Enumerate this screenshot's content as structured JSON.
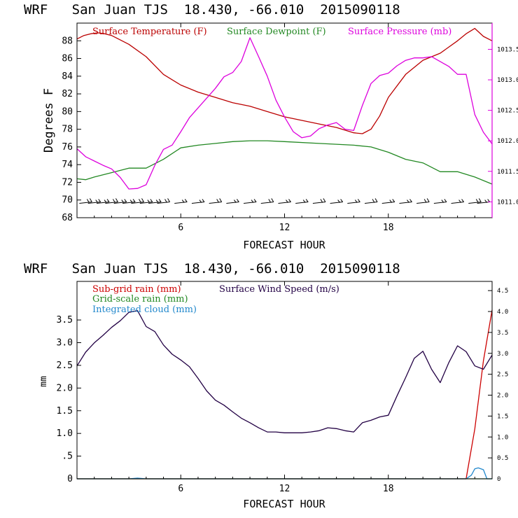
{
  "chart_data": [
    {
      "type": "line",
      "title": "WRF   San Juan TJS  18.430, -66.010  2015090118",
      "xlabel": "FORECAST HOUR",
      "ylabel": "Degrees F",
      "xlim": [
        0,
        24
      ],
      "ylim": [
        68,
        90
      ],
      "xticks": [
        "6",
        "12",
        "18"
      ],
      "yticks": [
        "68",
        "70",
        "72",
        "74",
        "76",
        "78",
        "80",
        "82",
        "84",
        "86",
        "88"
      ],
      "y2lim": [
        1010.74,
        1013.93
      ],
      "y2ticks": [
        "1011.0",
        "1011.5",
        "1012.0",
        "1012.5",
        "1013.0",
        "1013.5"
      ],
      "legend_placement": "top",
      "colors": {
        "temperature": "#bb0000",
        "dewpoint": "#228822",
        "pressure": "#dd00dd",
        "wind": "#000000"
      },
      "series": [
        {
          "name": "Surface Temperature (F)",
          "color": "#bb0000",
          "axis": "left",
          "x": [
            0,
            0.4,
            0.8,
            1.2,
            1.6,
            2,
            3,
            4,
            5,
            6,
            7,
            8,
            9,
            10,
            11,
            12,
            13,
            14,
            15,
            16,
            16.5,
            17,
            17.5,
            18,
            19,
            20,
            21,
            22,
            22.5,
            23,
            23.5,
            24
          ],
          "y": [
            88.2,
            88.6,
            88.8,
            88.9,
            88.8,
            88.6,
            87.6,
            86.2,
            84.2,
            83.0,
            82.2,
            81.6,
            81.0,
            80.6,
            80.0,
            79.4,
            79.0,
            78.6,
            78.2,
            77.6,
            77.5,
            78.0,
            79.5,
            81.6,
            84.2,
            85.8,
            86.6,
            88.0,
            88.8,
            89.4,
            88.5,
            88.0
          ]
        },
        {
          "name": "Surface Dewpoint (F)",
          "color": "#228822",
          "axis": "left",
          "x": [
            0,
            0.5,
            1,
            2,
            3,
            4,
            5,
            6,
            7,
            8,
            9,
            10,
            11,
            12,
            14,
            16,
            17,
            18,
            19,
            20,
            21,
            22,
            23,
            24
          ],
          "y": [
            72.4,
            72.3,
            72.6,
            73.1,
            73.6,
            73.6,
            74.6,
            75.9,
            76.2,
            76.4,
            76.6,
            76.7,
            76.7,
            76.6,
            76.4,
            76.2,
            76.0,
            75.4,
            74.6,
            74.2,
            73.2,
            73.2,
            72.6,
            71.8
          ]
        },
        {
          "name": "Surface Pressure (mb)",
          "color": "#dd00dd",
          "axis": "right",
          "x": [
            0,
            0.5,
            1,
            1.5,
            2,
            2.5,
            3,
            3.5,
            4,
            4.5,
            5,
            5.5,
            6,
            6.5,
            7,
            7.5,
            8,
            8.5,
            9,
            9.5,
            10,
            10.5,
            11,
            11.5,
            12,
            12.5,
            13,
            13.5,
            14,
            14.5,
            15,
            15.5,
            16,
            16.5,
            17,
            17.5,
            18,
            18.5,
            19,
            19.5,
            20,
            20.5,
            21,
            21.5,
            22,
            22.5,
            23,
            23.5,
            24
          ],
          "y": [
            1011.87,
            1011.74,
            1011.67,
            1011.6,
            1011.54,
            1011.4,
            1011.21,
            1011.22,
            1011.28,
            1011.6,
            1011.86,
            1011.93,
            1012.15,
            1012.38,
            1012.54,
            1012.7,
            1012.86,
            1013.05,
            1013.12,
            1013.3,
            1013.69,
            1013.38,
            1013.06,
            1012.67,
            1012.39,
            1012.15,
            1012.05,
            1012.08,
            1012.2,
            1012.26,
            1012.3,
            1012.19,
            1012.17,
            1012.58,
            1012.94,
            1013.07,
            1013.11,
            1013.23,
            1013.32,
            1013.36,
            1013.36,
            1013.38,
            1013.3,
            1013.22,
            1013.09,
            1013.09,
            1012.43,
            1012.14,
            1011.95
          ]
        },
        {
          "name": "Surface Wind",
          "color": "#000000",
          "axis": "none",
          "type": "barbs",
          "x": [
            0.5,
            1,
            1.5,
            2,
            2.5,
            3,
            3.5,
            4,
            4.5,
            5,
            6,
            7,
            8,
            9,
            10,
            11,
            12,
            13,
            14,
            15,
            16,
            17,
            18,
            19,
            20,
            21,
            22,
            23,
            23.5
          ],
          "y": [
            69.7,
            69.7,
            69.7,
            69.7,
            69.7,
            69.7,
            69.7,
            69.7,
            69.7,
            69.7,
            69.7,
            69.7,
            69.7,
            69.7,
            69.7,
            69.7,
            69.7,
            69.7,
            69.7,
            69.7,
            69.7,
            69.7,
            69.7,
            69.7,
            69.7,
            69.7,
            69.7,
            69.7,
            69.7
          ]
        }
      ]
    },
    {
      "type": "line",
      "title": "WRF   San Juan TJS  18.430, -66.010  2015090118",
      "xlabel": "FORECAST HOUR",
      "ylabel": "mm",
      "xlim": [
        0,
        24
      ],
      "ylim": [
        0,
        4.35
      ],
      "xticks": [
        "6",
        "12",
        "18"
      ],
      "yticks": [
        "0",
        ".5",
        "1.0",
        "1.5",
        "2.0",
        "2.5",
        "3.0",
        "3.5"
      ],
      "y2lim": [
        0,
        4.72
      ],
      "y2ticks": [
        "0",
        "0.5",
        "1.0",
        "1.5",
        "2.0",
        "2.5",
        "3.0",
        "3.5",
        "4.0",
        "4.5"
      ],
      "legend_placement": "top-left",
      "colors": {
        "subgrid": "#cc0000",
        "gridscale": "#228822",
        "cloud": "#2288cc",
        "wind": "#220044"
      },
      "series": [
        {
          "name": "Sub-grid rain (mm)",
          "color": "#cc0000",
          "axis": "left",
          "x": [
            0,
            22.5,
            23,
            23.5,
            24
          ],
          "y": [
            0,
            0,
            1.1,
            2.6,
            3.72
          ]
        },
        {
          "name": "Grid-scale rain (mm)",
          "color": "#228822",
          "axis": "left",
          "x": [
            0,
            24
          ],
          "y": [
            0,
            0
          ]
        },
        {
          "name": "Integrated cloud (mm)",
          "color": "#2288cc",
          "axis": "left",
          "x": [
            0,
            3,
            3.5,
            4,
            22.5,
            22.8,
            23,
            23.2,
            23.5,
            23.7,
            24
          ],
          "y": [
            0,
            0,
            0.015,
            0,
            0,
            0.08,
            0.22,
            0.24,
            0.2,
            0,
            0
          ]
        },
        {
          "name": "Surface Wind Speed (m/s)",
          "color": "#220044",
          "axis": "right",
          "x": [
            0,
            0.5,
            1,
            1.5,
            2,
            2.5,
            3,
            3.5,
            4,
            4.5,
            5,
            5.5,
            6,
            6.5,
            7,
            7.5,
            8,
            8.5,
            9,
            9.5,
            10,
            10.5,
            11,
            11.5,
            12,
            12.5,
            13,
            13.5,
            14,
            14.5,
            15,
            15.5,
            16,
            16.5,
            17,
            17.5,
            18,
            18.5,
            19,
            19.5,
            20,
            20.5,
            21,
            21.5,
            22,
            22.5,
            23,
            23.5,
            24
          ],
          "y": [
            2.7,
            3.03,
            3.25,
            3.43,
            3.62,
            3.78,
            3.98,
            4.02,
            3.64,
            3.52,
            3.2,
            2.98,
            2.84,
            2.68,
            2.4,
            2.1,
            1.88,
            1.76,
            1.6,
            1.45,
            1.34,
            1.22,
            1.12,
            1.12,
            1.1,
            1.1,
            1.1,
            1.12,
            1.15,
            1.22,
            1.2,
            1.15,
            1.12,
            1.34,
            1.4,
            1.48,
            1.52,
            1.98,
            2.42,
            2.88,
            3.05,
            2.62,
            2.3,
            2.78,
            3.18,
            3.04,
            2.7,
            2.62,
            2.96
          ]
        }
      ]
    }
  ]
}
